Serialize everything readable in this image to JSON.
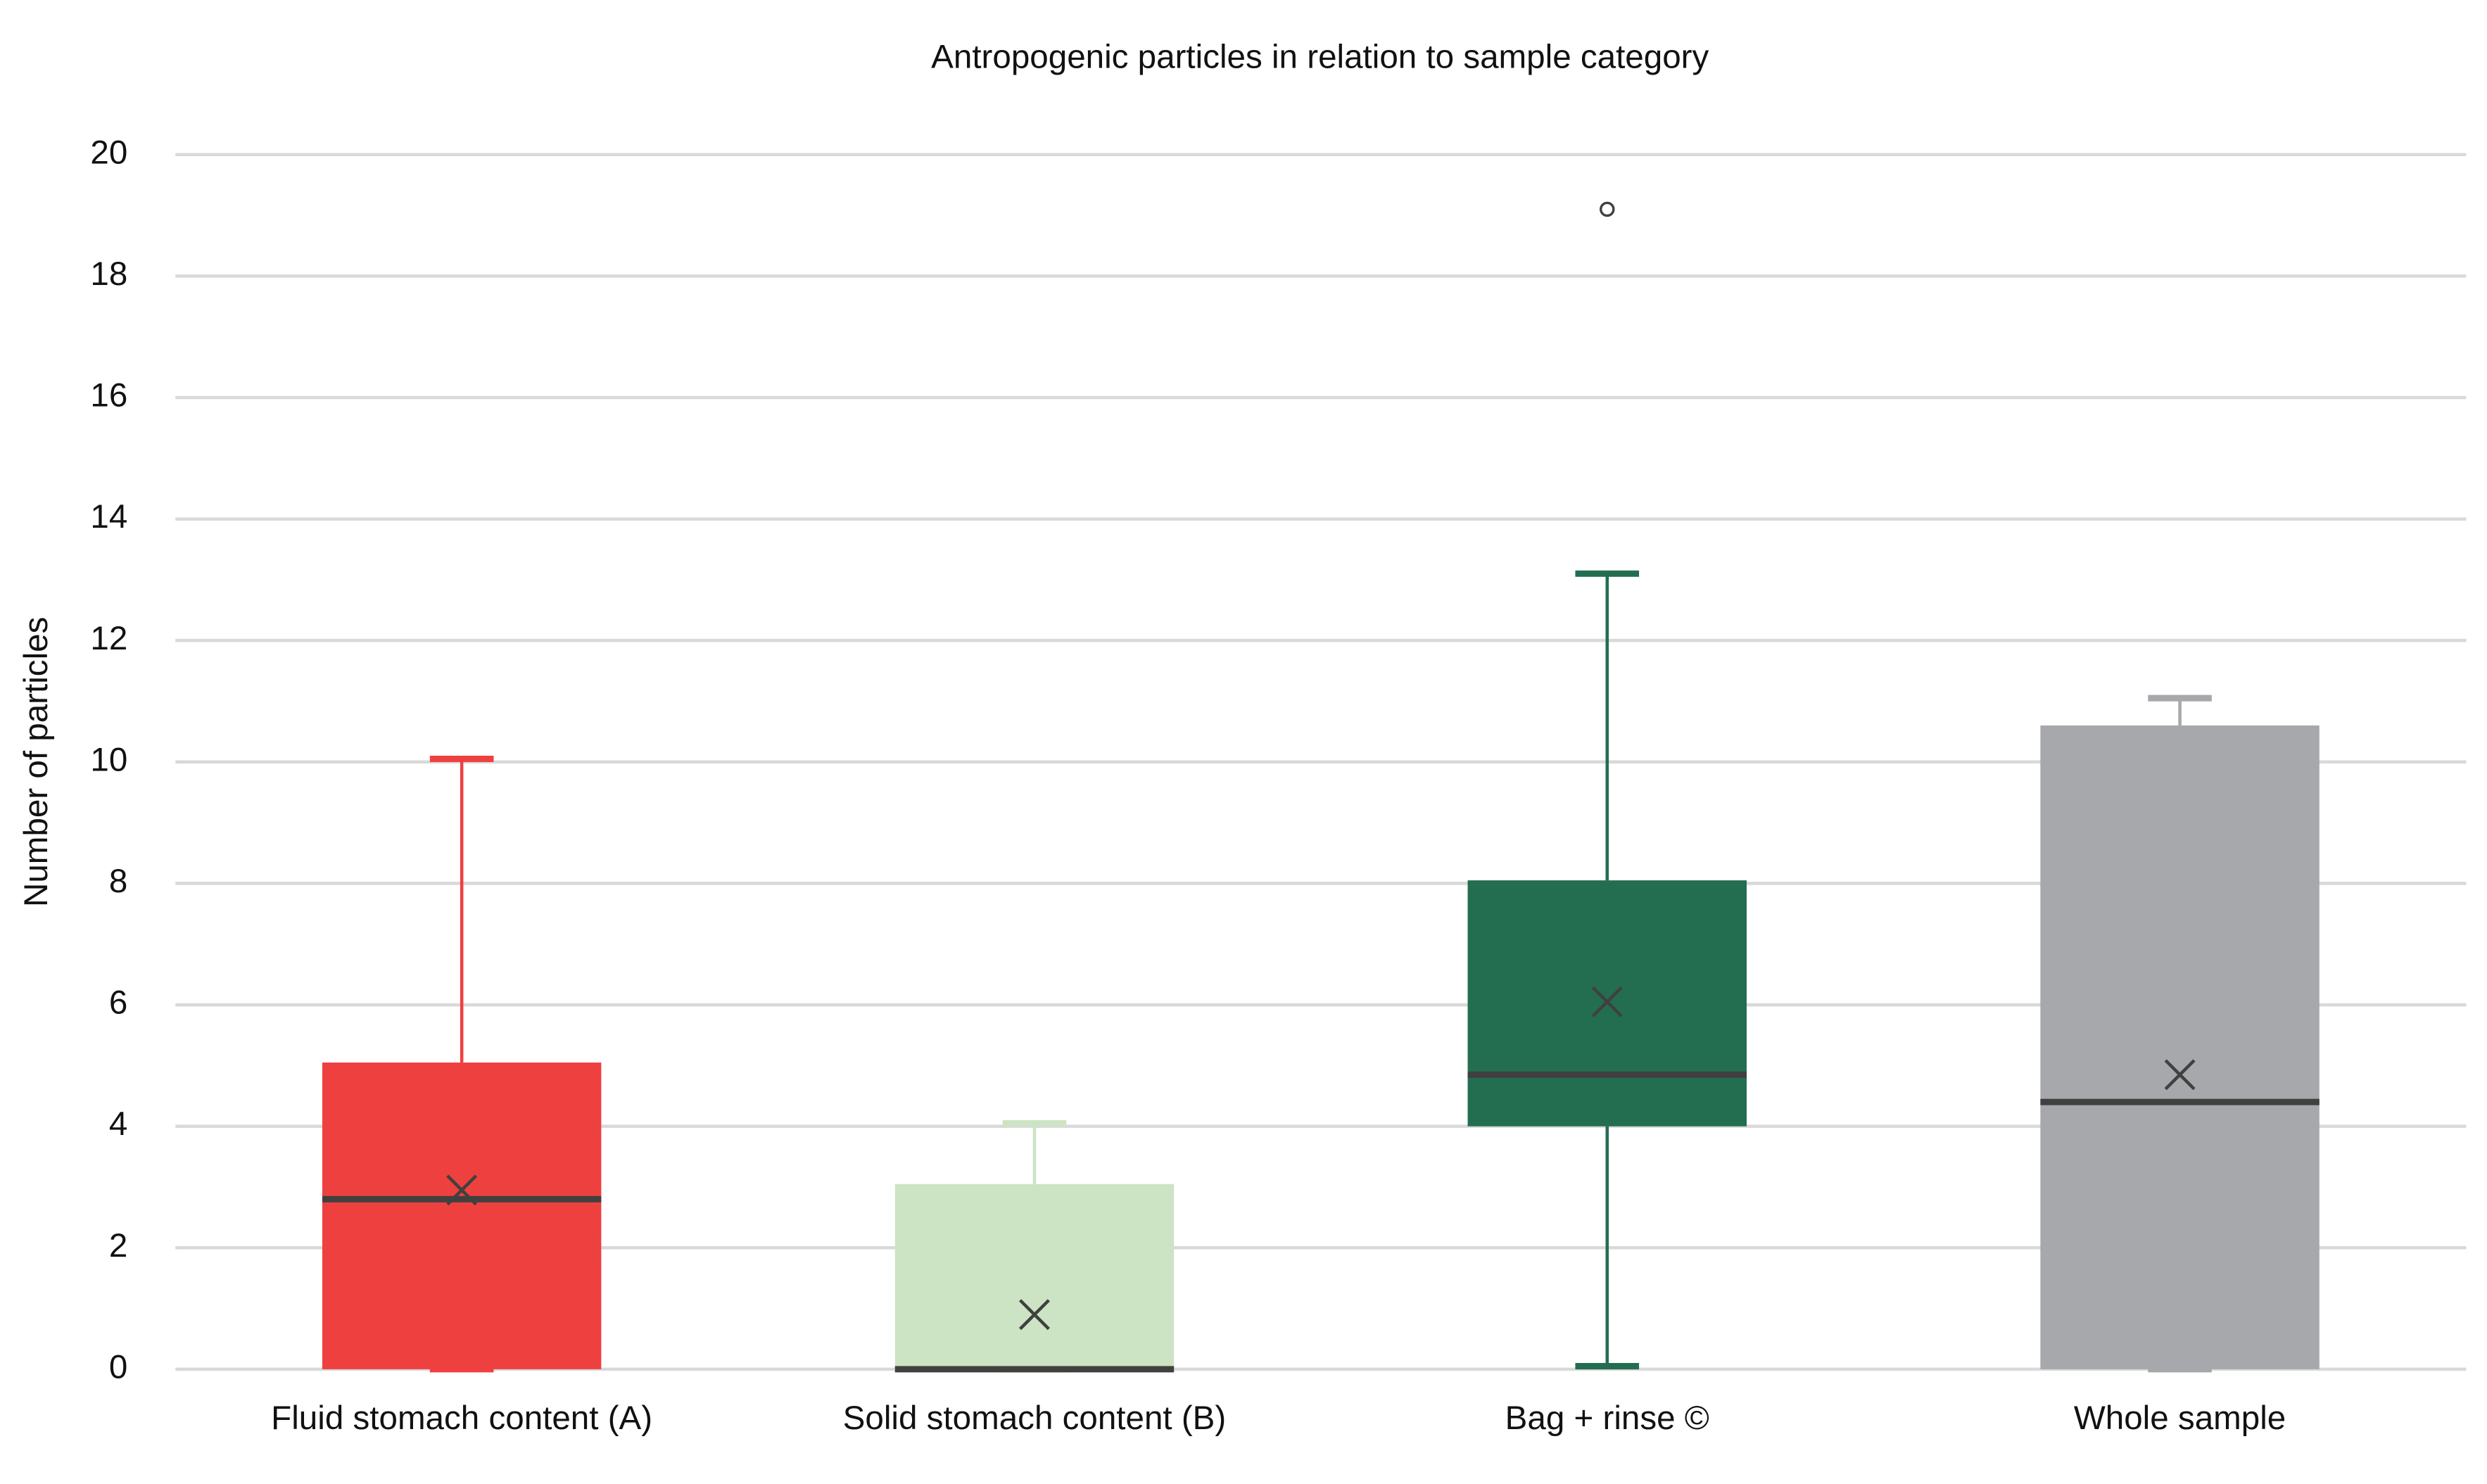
{
  "chart_data": {
    "type": "box",
    "title": "Antropogenic particles in relation to sample category",
    "y_label": "Number of particles",
    "categories": [
      "Fluid stomach content (A)",
      "Solid stomach content (B)",
      "Bag + rinse ©",
      "Whole sample"
    ],
    "boxes": [
      {
        "color": "#ef4040",
        "min": 0,
        "q1": 0,
        "median": 2.8,
        "q3": 5.05,
        "max": 10.05,
        "mean": 2.95,
        "outliers": []
      },
      {
        "color": "#cde4c4",
        "min": 0,
        "q1": 0,
        "median": 0,
        "q3": 3.05,
        "max": 4.05,
        "mean": 0.9,
        "outliers": []
      },
      {
        "color": "#236e50",
        "min": 0.05,
        "q1": 4,
        "median": 4.85,
        "q3": 8.05,
        "max": 13.1,
        "mean": 6.05,
        "outliers": [
          19.1
        ]
      },
      {
        "color": "#a7a8ab",
        "min": 0,
        "q1": 0,
        "median": 4.4,
        "q3": 10.6,
        "max": 11.05,
        "mean": 4.85,
        "outliers": []
      }
    ],
    "ylim": [
      0,
      20
    ],
    "yticks": [
      0,
      2,
      4,
      6,
      8,
      10,
      12,
      14,
      16,
      18,
      20
    ],
    "grid": true
  }
}
